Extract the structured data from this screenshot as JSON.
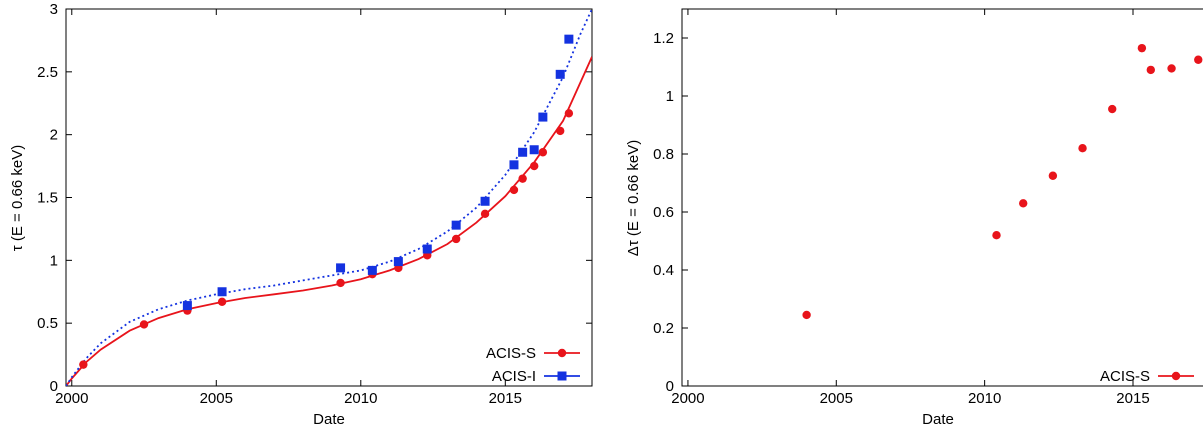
{
  "chart_data": [
    {
      "type": "scatter",
      "title": "",
      "xlabel": "Date",
      "ylabel": "τ (E = 0.66 keV)",
      "xlim": [
        1999.8,
        2018
      ],
      "ylim": [
        0,
        3
      ],
      "grid": false,
      "legend_position": "bottom-right",
      "x_ticks": [
        2000,
        2005,
        2010,
        2015
      ],
      "x_tick_labels": [
        "2000",
        "2005",
        "2010",
        "2015"
      ],
      "y_ticks": [
        0,
        0.5,
        1,
        1.5,
        2,
        2.5,
        3
      ],
      "y_tick_labels": [
        "0",
        "0.5",
        "1",
        "1.5",
        "2",
        "2.5",
        "3"
      ],
      "series": [
        {
          "name": "ACIS-S",
          "color": "#e8141b",
          "marker": "circle",
          "line_style": "solid",
          "points": [
            {
              "x": 2000.4,
              "y": 0.17
            },
            {
              "x": 2002.5,
              "y": 0.49
            },
            {
              "x": 2004.0,
              "y": 0.6
            },
            {
              "x": 2005.2,
              "y": 0.67
            },
            {
              "x": 2009.3,
              "y": 0.82
            },
            {
              "x": 2010.4,
              "y": 0.89
            },
            {
              "x": 2011.3,
              "y": 0.94
            },
            {
              "x": 2012.3,
              "y": 1.04
            },
            {
              "x": 2013.3,
              "y": 1.17
            },
            {
              "x": 2014.3,
              "y": 1.37
            },
            {
              "x": 2015.3,
              "y": 1.56
            },
            {
              "x": 2015.6,
              "y": 1.65
            },
            {
              "x": 2016.0,
              "y": 1.75
            },
            {
              "x": 2016.3,
              "y": 1.86
            },
            {
              "x": 2016.9,
              "y": 2.03
            },
            {
              "x": 2017.2,
              "y": 2.17
            }
          ],
          "fit_curve": [
            {
              "x": 1999.8,
              "y": 0.0
            },
            {
              "x": 2000.0,
              "y": 0.06
            },
            {
              "x": 2000.5,
              "y": 0.19
            },
            {
              "x": 2001.0,
              "y": 0.29
            },
            {
              "x": 2002.0,
              "y": 0.44
            },
            {
              "x": 2003.0,
              "y": 0.54
            },
            {
              "x": 2004.0,
              "y": 0.61
            },
            {
              "x": 2005.0,
              "y": 0.66
            },
            {
              "x": 2006.0,
              "y": 0.7
            },
            {
              "x": 2007.0,
              "y": 0.73
            },
            {
              "x": 2008.0,
              "y": 0.76
            },
            {
              "x": 2009.0,
              "y": 0.8
            },
            {
              "x": 2010.0,
              "y": 0.85
            },
            {
              "x": 2011.0,
              "y": 0.92
            },
            {
              "x": 2012.0,
              "y": 1.01
            },
            {
              "x": 2013.0,
              "y": 1.13
            },
            {
              "x": 2014.0,
              "y": 1.3
            },
            {
              "x": 2015.0,
              "y": 1.51
            },
            {
              "x": 2016.0,
              "y": 1.78
            },
            {
              "x": 2017.0,
              "y": 2.11
            },
            {
              "x": 2018.0,
              "y": 2.62
            }
          ]
        },
        {
          "name": "ACIS-I",
          "color": "#1432e0",
          "marker": "square",
          "line_style": "dotted",
          "points": [
            {
              "x": 2004.0,
              "y": 0.64
            },
            {
              "x": 2005.2,
              "y": 0.75
            },
            {
              "x": 2009.3,
              "y": 0.94
            },
            {
              "x": 2010.4,
              "y": 0.92
            },
            {
              "x": 2011.3,
              "y": 0.99
            },
            {
              "x": 2012.3,
              "y": 1.09
            },
            {
              "x": 2013.3,
              "y": 1.28
            },
            {
              "x": 2014.3,
              "y": 1.47
            },
            {
              "x": 2015.3,
              "y": 1.76
            },
            {
              "x": 2015.6,
              "y": 1.86
            },
            {
              "x": 2016.0,
              "y": 1.88
            },
            {
              "x": 2016.3,
              "y": 2.14
            },
            {
              "x": 2016.9,
              "y": 2.48
            },
            {
              "x": 2017.2,
              "y": 2.76
            }
          ],
          "fit_curve": [
            {
              "x": 1999.8,
              "y": 0.0
            },
            {
              "x": 2000.0,
              "y": 0.07
            },
            {
              "x": 2000.5,
              "y": 0.22
            },
            {
              "x": 2001.0,
              "y": 0.34
            },
            {
              "x": 2002.0,
              "y": 0.51
            },
            {
              "x": 2003.0,
              "y": 0.61
            },
            {
              "x": 2004.0,
              "y": 0.68
            },
            {
              "x": 2005.0,
              "y": 0.73
            },
            {
              "x": 2006.0,
              "y": 0.77
            },
            {
              "x": 2007.0,
              "y": 0.8
            },
            {
              "x": 2008.0,
              "y": 0.84
            },
            {
              "x": 2009.0,
              "y": 0.88
            },
            {
              "x": 2010.0,
              "y": 0.92
            },
            {
              "x": 2011.0,
              "y": 0.99
            },
            {
              "x": 2012.0,
              "y": 1.09
            },
            {
              "x": 2013.0,
              "y": 1.23
            },
            {
              "x": 2014.0,
              "y": 1.42
            },
            {
              "x": 2015.0,
              "y": 1.68
            },
            {
              "x": 2016.0,
              "y": 2.02
            },
            {
              "x": 2017.0,
              "y": 2.46
            },
            {
              "x": 2017.6,
              "y": 2.8
            },
            {
              "x": 2018.0,
              "y": 3.0
            }
          ]
        }
      ]
    },
    {
      "type": "scatter",
      "title": "",
      "xlabel": "Date",
      "ylabel": "Δτ (E = 0.66 keV)",
      "xlim": [
        1999.8,
        2018
      ],
      "ylim": [
        0,
        1.3
      ],
      "grid": false,
      "legend_position": "bottom-right",
      "x_ticks": [
        2000,
        2005,
        2010,
        2015
      ],
      "x_tick_labels": [
        "2000",
        "2005",
        "2010",
        "2015"
      ],
      "y_ticks": [
        0,
        0.2,
        0.4,
        0.6,
        0.8,
        1,
        1.2
      ],
      "y_tick_labels": [
        "0",
        "0.2",
        "0.4",
        "0.6",
        "0.8",
        "1",
        "1.2"
      ],
      "series": [
        {
          "name": "ACIS-S",
          "color": "#e8141b",
          "marker": "circle",
          "line_style": "none",
          "points": [
            {
              "x": 2004.0,
              "y": 0.245
            },
            {
              "x": 2010.4,
              "y": 0.52
            },
            {
              "x": 2011.3,
              "y": 0.63
            },
            {
              "x": 2012.3,
              "y": 0.725
            },
            {
              "x": 2013.3,
              "y": 0.82
            },
            {
              "x": 2014.3,
              "y": 0.955
            },
            {
              "x": 2015.3,
              "y": 1.165
            },
            {
              "x": 2015.6,
              "y": 1.09
            },
            {
              "x": 2016.3,
              "y": 1.095
            },
            {
              "x": 2017.2,
              "y": 1.125
            }
          ]
        }
      ]
    }
  ]
}
